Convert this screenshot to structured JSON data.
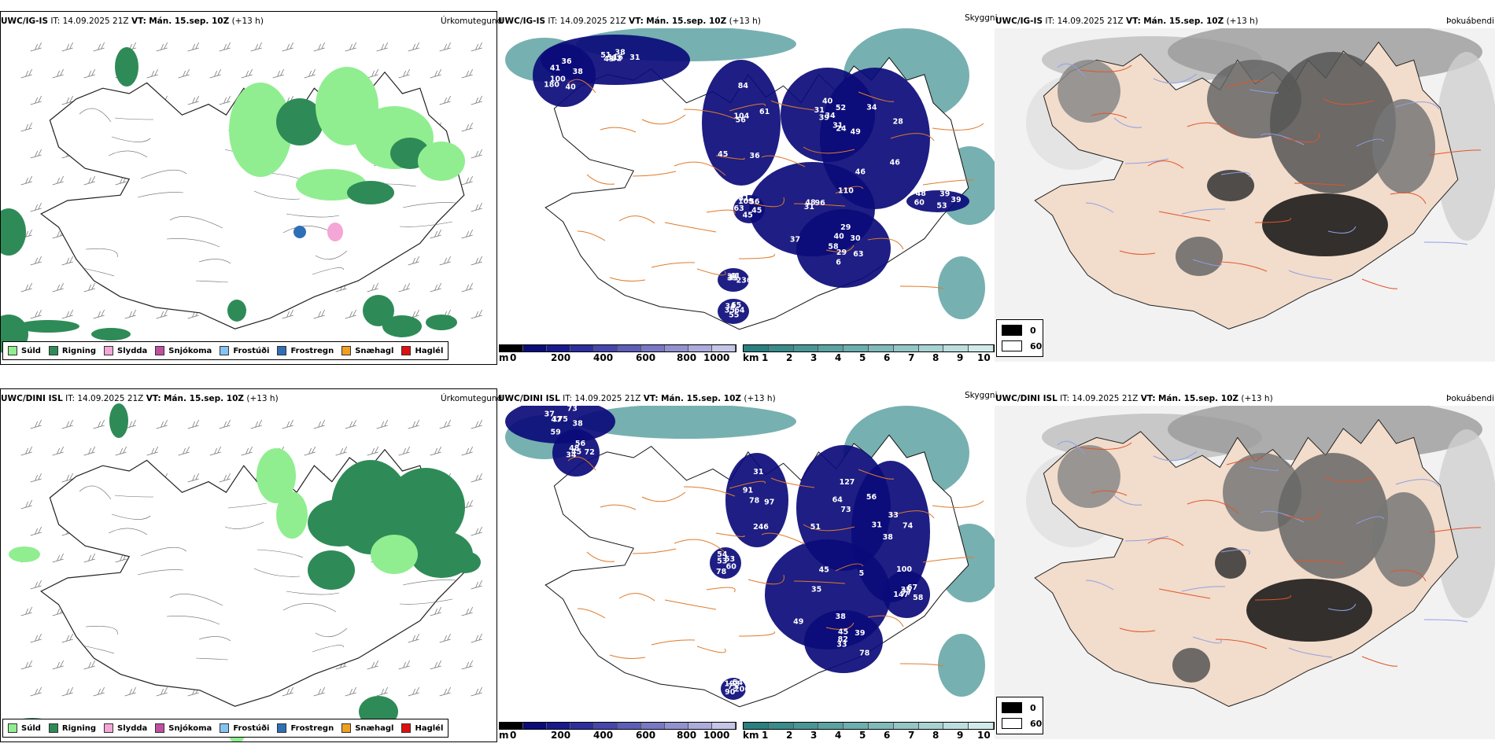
{
  "rows": [
    {
      "precip": {
        "model": "UWC/IG-IS",
        "it": "IT: 14.09.2025 21Z",
        "vt_label": "VT:",
        "vt": "Mán. 15.sep. 10Z",
        "lead": "(+13 h)",
        "label": "Úrkomutegund"
      },
      "cloud": {
        "model": "UWC/IG-IS",
        "it": "IT: 14.09.2025 21Z",
        "vt_label": "VT:",
        "vt": "Mán. 15.sep. 10Z",
        "lead": "(+13 h)",
        "label": "Skyggni",
        "numbers": [
          "116",
          "100",
          "84",
          "34",
          "49",
          "110",
          "29",
          "109",
          "236",
          "35",
          "39",
          "32",
          "41",
          "61",
          "39",
          "34",
          "29",
          "58",
          "56",
          "31",
          "34",
          "39",
          "43",
          "36",
          "36",
          "31",
          "28",
          "37",
          "40",
          "45",
          "33",
          "65",
          "53",
          "51",
          "38",
          "45",
          "40",
          "46",
          "31",
          "30",
          "45",
          "37",
          "64",
          "60",
          "38",
          "40",
          "56",
          "52",
          "46",
          "48",
          "63",
          "63",
          "41",
          "55",
          "48",
          "31",
          "180",
          "104",
          "31",
          "24",
          "96",
          "6",
          "31"
        ]
      },
      "fog": {
        "model": "UWC/IG-IS",
        "it": "IT: 14.09.2025 21Z",
        "vt_label": "VT:",
        "vt": "Mán. 15.sep. 10Z",
        "lead": "(+13 h)",
        "label": "Þokuábendi"
      }
    },
    {
      "precip": {
        "model": "UWC/DINI ISL",
        "it": "IT: 14.09.2025 21Z",
        "vt_label": "VT:",
        "vt": "Mán. 15.sep. 10Z",
        "lead": "(+13 h)",
        "label": "Úrkomutegund"
      },
      "cloud": {
        "model": "UWC/DINI ISL",
        "it": "IT: 14.09.2025 21Z",
        "vt_label": "VT:",
        "vt": "Mán. 15.sep. 10Z",
        "lead": "(+13 h)",
        "label": "Skyggni",
        "numbers": [
          "175",
          "34",
          "31",
          "73",
          "31",
          "5",
          "33",
          "54",
          "206",
          "147",
          "73",
          "45",
          "91",
          "56",
          "38",
          "45",
          "78",
          "53",
          "54",
          "77",
          "37",
          "72",
          "78",
          "127",
          "100",
          "35",
          "39",
          "78",
          "193",
          "58",
          "47",
          "56",
          "246",
          "64",
          "74",
          "49",
          "45",
          "60",
          "75",
          "67",
          "59",
          "48",
          "97",
          "51",
          "33",
          "38",
          "82",
          "53",
          "90",
          "35",
          "38"
        ]
      },
      "fog": {
        "model": "UWC/DINI ISL",
        "it": "IT: 14.09.2025 21Z",
        "vt_label": "VT:",
        "vt": "Mán. 15.sep. 10Z",
        "lead": "(+13 h)",
        "label": "Þokuábendi"
      }
    }
  ],
  "precip_legend": [
    {
      "label": "Súld",
      "color": "#90ee90"
    },
    {
      "label": "Rigning",
      "color": "#2e8b57"
    },
    {
      "label": "Slydda",
      "color": "#f4a6d7"
    },
    {
      "label": "Snjókoma",
      "color": "#c04fa0"
    },
    {
      "label": "Frostúði",
      "color": "#87c3f0"
    },
    {
      "label": "Frostregn",
      "color": "#2f6fb5"
    },
    {
      "label": "Snæhagl",
      "color": "#f0a020"
    },
    {
      "label": "Haglél",
      "color": "#e01010"
    }
  ],
  "ceiling_scale": {
    "unit": "m",
    "ticks": [
      "0",
      "200",
      "400",
      "600",
      "800",
      "1000"
    ],
    "colors": [
      "#000000",
      "#0b0b7a",
      "#1a1a8f",
      "#2e2e9e",
      "#4646ad",
      "#5e5eb8",
      "#7878c4",
      "#9292d0",
      "#ababdc",
      "#c5c5e8"
    ]
  },
  "visibility_scale": {
    "unit": "km",
    "ticks": [
      "1",
      "2",
      "3",
      "4",
      "5",
      "6",
      "7",
      "8",
      "9",
      "10"
    ],
    "colors": [
      "#2a8080",
      "#3a8b8b",
      "#4a9696",
      "#5ba2a2",
      "#6daeae",
      "#80baba",
      "#94c6c6",
      "#a8d2d2",
      "#bcdede",
      "#d0eaea"
    ]
  },
  "fog_legend": [
    {
      "value": "0",
      "color": "#000000"
    },
    {
      "value": "60",
      "color": "#ffffff"
    }
  ]
}
